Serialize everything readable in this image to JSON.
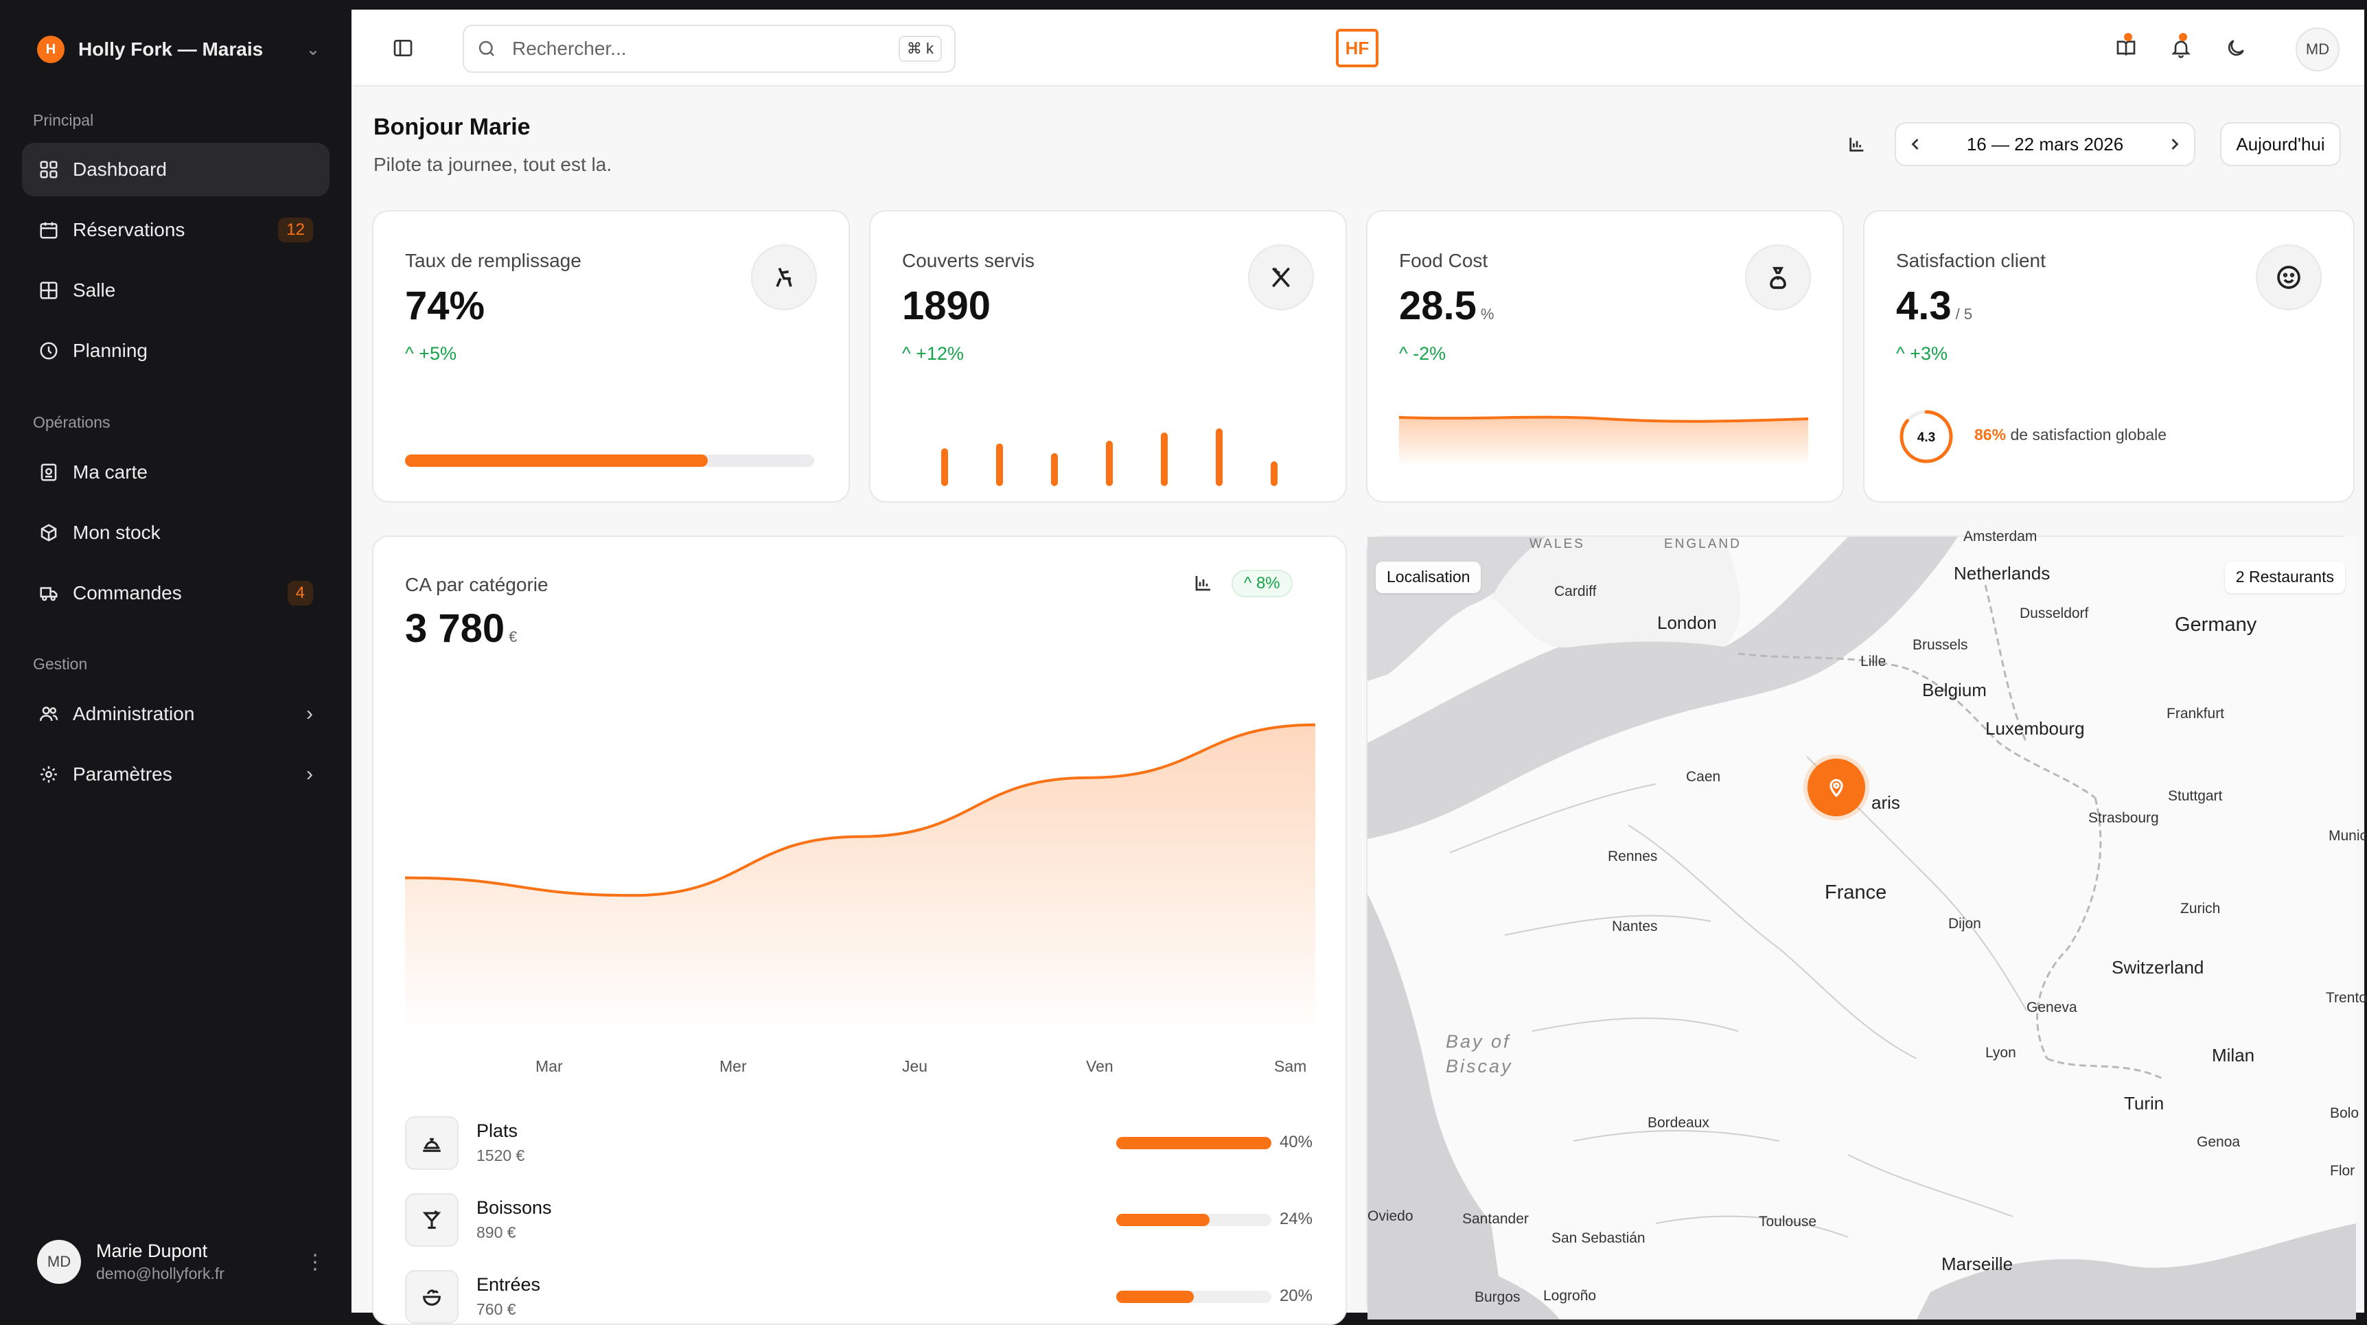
{
  "workspace": {
    "badge": "H",
    "name": "Holly Fork — Marais"
  },
  "sidebar": {
    "sections": [
      {
        "label": "Principal"
      },
      {
        "label": "Opérations"
      },
      {
        "label": "Gestion"
      }
    ],
    "items": [
      {
        "label": "Dashboard",
        "icon": "grid-icon",
        "active": true
      },
      {
        "label": "Réservations",
        "icon": "calendar-icon",
        "badge": "12"
      },
      {
        "label": "Salle",
        "icon": "table-layout-icon"
      },
      {
        "label": "Planning",
        "icon": "clock-icon"
      },
      {
        "label": "Ma carte",
        "icon": "menu-card-icon"
      },
      {
        "label": "Mon stock",
        "icon": "box-icon"
      },
      {
        "label": "Commandes",
        "icon": "truck-icon",
        "badge": "4"
      },
      {
        "label": "Administration",
        "icon": "users-icon",
        "arrow": "›"
      },
      {
        "label": "Paramètres",
        "icon": "gear-icon",
        "arrow": "›"
      }
    ],
    "user": {
      "initials": "MD",
      "name": "Marie Dupont",
      "email": "demo@hollyfork.fr"
    }
  },
  "topbar": {
    "search_placeholder": "Rechercher...",
    "shortcut": "⌘ k",
    "logo": "HF",
    "avatar": "MD"
  },
  "header": {
    "greeting": "Bonjour Marie",
    "subtitle": "Pilote ta journee, tout est la.",
    "date_range": "16 — 22 mars 2026",
    "today_label": "Aujourd'hui"
  },
  "kpis": {
    "fill": {
      "label": "Taux de remplissage",
      "value": "74%",
      "trend": "+5%",
      "progress": 0.74
    },
    "covers": {
      "label": "Couverts servis",
      "value": "1890",
      "trend": "+12%",
      "bars": [
        0.55,
        0.62,
        0.48,
        0.66,
        0.78,
        0.84,
        0.36
      ]
    },
    "food": {
      "label": "Food Cost",
      "value": "28.5",
      "unit": "%",
      "trend": "-2%"
    },
    "satisfaction": {
      "label": "Satisfaction client",
      "value": "4.3",
      "unit": "/ 5",
      "trend": "+3%",
      "gauge_value": "4.3",
      "gauge_fraction": 0.86,
      "summary_pct": "86%",
      "summary_text": "de satisfaction globale"
    }
  },
  "ca": {
    "label": "CA par catégorie",
    "value": "3 780",
    "unit": "€",
    "badge": "8%",
    "categories": [
      {
        "name": "Plats",
        "amount": "1520 €",
        "pct": "40%",
        "fraction": 0.4,
        "icon": "cloche-icon"
      },
      {
        "name": "Boissons",
        "amount": "890 €",
        "pct": "24%",
        "fraction": 0.24,
        "icon": "cocktail-icon"
      },
      {
        "name": "Entrées",
        "amount": "760 €",
        "pct": "20%",
        "fraction": 0.2,
        "icon": "salad-icon"
      }
    ]
  },
  "chart_data": {
    "type": "area",
    "x": [
      "Mar",
      "Mer",
      "Jeu",
      "Ven",
      "Sam"
    ],
    "categories": [
      "Mar",
      "Mer",
      "Jeu",
      "Ven",
      "Sam"
    ],
    "series": [
      {
        "values": [
          470,
          440,
          540,
          640,
          730
        ]
      }
    ],
    "ylim": [
      200,
      760
    ],
    "grid": false,
    "color": "#f97316"
  },
  "map": {
    "tag_left": "Localisation",
    "tag_right": "2 Restaurants",
    "labels": [
      {
        "text": "WALES",
        "style": "caps"
      },
      {
        "text": "ENGLAND",
        "style": "caps"
      },
      {
        "text": "Netherlands",
        "style": "med"
      },
      {
        "text": "Germany",
        "style": "big"
      },
      {
        "text": "Cardiff",
        "style": ""
      },
      {
        "text": "London",
        "style": "med"
      },
      {
        "text": "Dusseldorf",
        "style": ""
      },
      {
        "text": "Brussels",
        "style": ""
      },
      {
        "text": "Lille",
        "style": ""
      },
      {
        "text": "Belgium",
        "style": "med"
      },
      {
        "text": "Frankfurt",
        "style": ""
      },
      {
        "text": "Luxembourg",
        "style": "med"
      },
      {
        "text": "Caen",
        "style": ""
      },
      {
        "text": "aris",
        "style": "med"
      },
      {
        "text": "Stuttgart",
        "style": ""
      },
      {
        "text": "Strasbourg",
        "style": ""
      },
      {
        "text": "Munic",
        "style": ""
      },
      {
        "text": "Rennes",
        "style": ""
      },
      {
        "text": "France",
        "style": "big"
      },
      {
        "text": "Zurich",
        "style": ""
      },
      {
        "text": "Nantes",
        "style": ""
      },
      {
        "text": "Dijon",
        "style": ""
      },
      {
        "text": "Switzerland",
        "style": "med"
      },
      {
        "text": "Trento",
        "style": ""
      },
      {
        "text": "Geneva",
        "style": ""
      },
      {
        "text": "Bay of",
        "style": "sea"
      },
      {
        "text": "Biscay",
        "style": "sea"
      },
      {
        "text": "Lyon",
        "style": ""
      },
      {
        "text": "Milan",
        "style": "med"
      },
      {
        "text": "Turin",
        "style": "med"
      },
      {
        "text": "Bolo",
        "style": ""
      },
      {
        "text": "Bordeaux",
        "style": ""
      },
      {
        "text": "Genoa",
        "style": ""
      },
      {
        "text": "Flor",
        "style": ""
      },
      {
        "text": "Oviedo",
        "style": ""
      },
      {
        "text": "Santander",
        "style": ""
      },
      {
        "text": "San Sebastián",
        "style": ""
      },
      {
        "text": "Toulouse",
        "style": ""
      },
      {
        "text": "Marseille",
        "style": "med"
      },
      {
        "text": "Burgos",
        "style": ""
      },
      {
        "text": "Logroño",
        "style": ""
      },
      {
        "text": "Amsterdam",
        "style": ""
      }
    ]
  }
}
